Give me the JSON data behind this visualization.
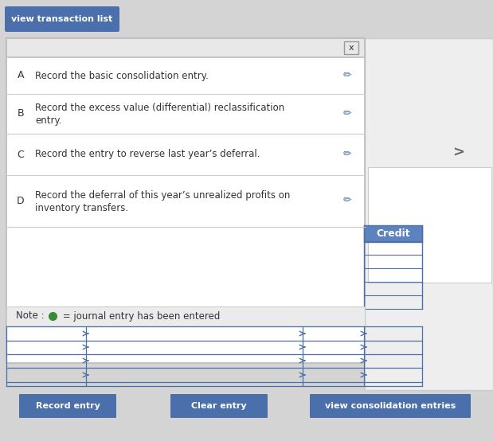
{
  "bg_color": "#d4d4d4",
  "panel_color": "#ffffff",
  "panel_border": "#bbbbbb",
  "header_bar_color": "#e8e8e8",
  "btn_color": "#4a6faa",
  "btn_text_color": "#ffffff",
  "credit_btn_color": "#5d83be",
  "top_btn_label": "view transaction list",
  "close_char": "x",
  "entries": [
    {
      "letter": "A",
      "text1": "Record the basic consolidation entry.",
      "text2": ""
    },
    {
      "letter": "B",
      "text1": "Record the excess value (differential) reclassification",
      "text2": "entry."
    },
    {
      "letter": "C",
      "text1": "Record the entry to reverse last year’s deferral.",
      "text2": ""
    },
    {
      "letter": "D",
      "text1": "Record the deferral of this year’s unrealized profits on",
      "text2": "inventory transfers."
    }
  ],
  "note_dot_color": "#3a8a3a",
  "btn_labels": [
    "Record entry",
    "Clear entry",
    "view consolidation entries"
  ],
  "credit_label": "Credit",
  "pencil_color": "#4a6faa",
  "divider_color": "#cccccc",
  "row_line_color": "#4a6faa",
  "table_border_color": "#4a6faa",
  "right_panel_bg": "#eeeeee",
  "figsize": [
    6.19,
    5.54
  ],
  "dpi": 100
}
